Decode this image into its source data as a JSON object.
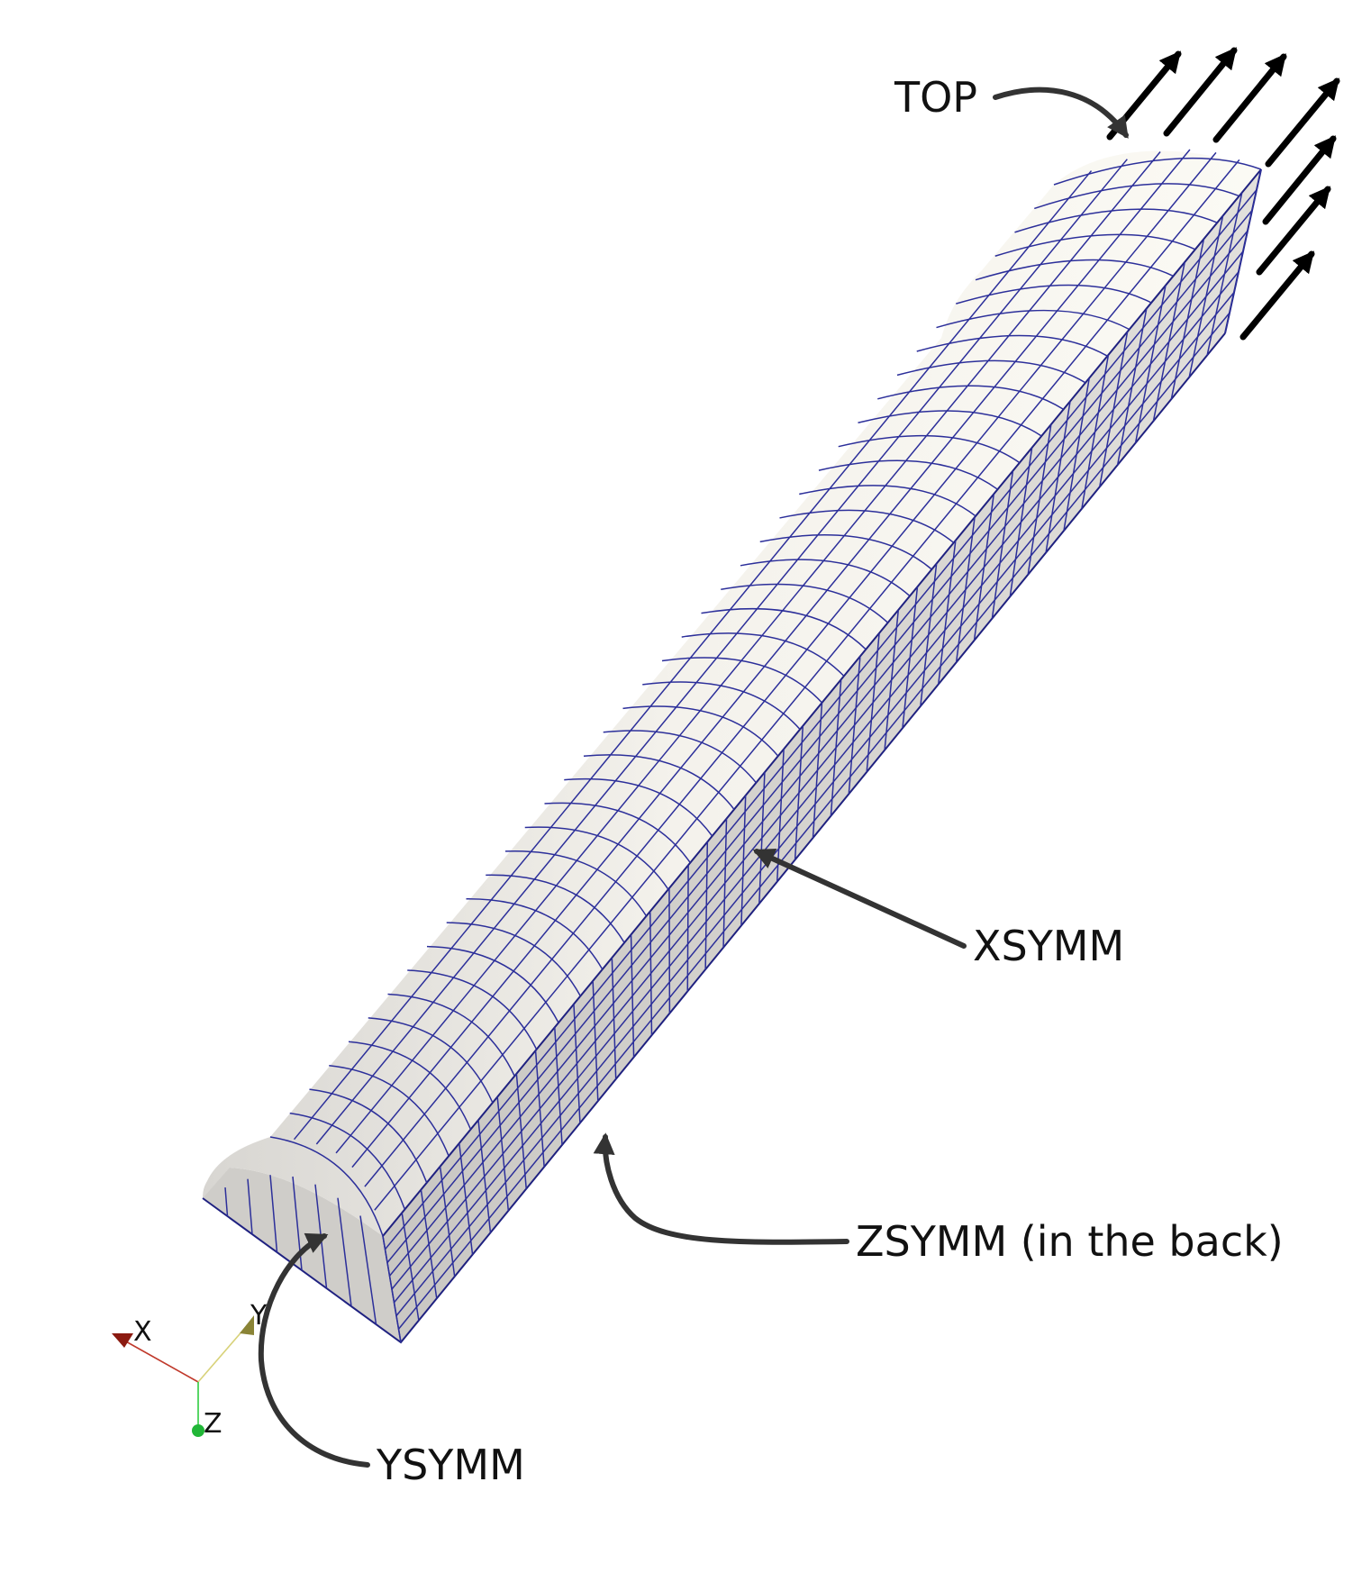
{
  "labels": {
    "top": "TOP",
    "xsymm": "XSYMM",
    "zsymm": "ZSYMM (in the back)",
    "ysymm": "YSYMM"
  },
  "axes": {
    "x": "X",
    "y": "Y",
    "z": "Z"
  },
  "colors": {
    "mesh_lines": "#2c2f9a",
    "top_face": "#f7f5ee",
    "side_face": "#dcdad6",
    "callout": "#333333",
    "load_arrows": "#000000",
    "axis_x": "#c0392b",
    "axis_y": "#c9c26a",
    "axis_z": "#2ecc40"
  },
  "icons": [
    "load-arrow-icon",
    "callout-arrow-icon",
    "axes-triad-icon"
  ]
}
